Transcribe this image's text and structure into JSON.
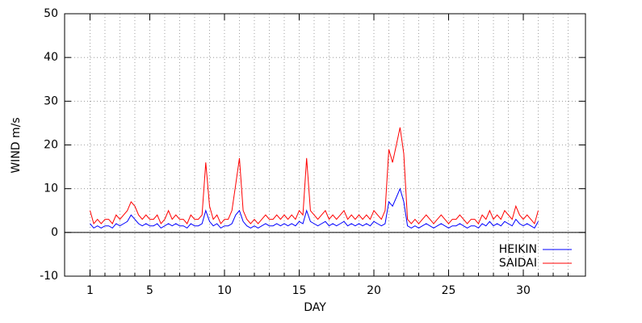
{
  "chart_data": {
    "type": "line",
    "xlabel": "DAY",
    "ylabel": "WIND m/s",
    "xlim": [
      -0.7,
      34.16
    ],
    "xticks": [
      1,
      5,
      10,
      15,
      20,
      25,
      30
    ],
    "xminorticks": [
      1,
      2,
      3,
      4,
      5,
      6,
      7,
      8,
      9,
      10,
      11,
      12,
      13,
      14,
      15,
      16,
      17,
      18,
      19,
      20,
      21,
      22,
      23,
      24,
      25,
      26,
      27,
      28,
      29,
      30,
      31,
      32,
      33
    ],
    "ylim": [
      -10,
      50
    ],
    "yticks": [
      -10,
      0,
      10,
      20,
      30,
      40,
      50
    ],
    "grid": true,
    "legend": "bottom-right",
    "x": [
      1,
      1.25,
      1.5,
      1.75,
      2,
      2.25,
      2.5,
      2.75,
      3,
      3.25,
      3.5,
      3.75,
      4,
      4.25,
      4.5,
      4.75,
      5,
      5.25,
      5.5,
      5.75,
      6,
      6.25,
      6.5,
      6.75,
      7,
      7.25,
      7.5,
      7.75,
      8,
      8.25,
      8.5,
      8.75,
      9,
      9.25,
      9.5,
      9.75,
      10,
      10.25,
      10.5,
      10.75,
      11,
      11.25,
      11.5,
      11.75,
      12,
      12.25,
      12.5,
      12.75,
      13,
      13.25,
      13.5,
      13.75,
      14,
      14.25,
      14.5,
      14.75,
      15,
      15.25,
      15.5,
      15.75,
      16,
      16.25,
      16.5,
      16.75,
      17,
      17.25,
      17.5,
      17.75,
      18,
      18.25,
      18.5,
      18.75,
      19,
      19.25,
      19.5,
      19.75,
      20,
      20.25,
      20.5,
      20.75,
      21,
      21.25,
      21.5,
      21.75,
      22,
      22.25,
      22.5,
      22.75,
      23,
      23.25,
      23.5,
      23.75,
      24,
      24.25,
      24.5,
      24.75,
      25,
      25.25,
      25.5,
      25.75,
      26,
      26.25,
      26.5,
      26.75,
      27,
      27.25,
      27.5,
      27.75,
      28,
      28.25,
      28.5,
      28.75,
      29,
      29.25,
      29.5,
      29.75,
      30,
      30.25,
      30.5,
      30.75,
      31
    ],
    "series": [
      {
        "name": "HEIKIN",
        "color": "#0000ff",
        "values": [
          2,
          1,
          1.5,
          1,
          1.5,
          1.5,
          1,
          2,
          1.5,
          2,
          2.5,
          4,
          3,
          2,
          1.5,
          2,
          1.5,
          1.5,
          2,
          1,
          1.5,
          2,
          1.5,
          2,
          1.5,
          1.5,
          1,
          2,
          1.5,
          1.5,
          2,
          5,
          2.5,
          1.5,
          2,
          1,
          1.5,
          1.5,
          2,
          4,
          5,
          2.5,
          1.5,
          1,
          1.5,
          1,
          1.5,
          2,
          1.5,
          1.5,
          2,
          1.5,
          2,
          1.5,
          2,
          1.5,
          2.5,
          2,
          5,
          2.5,
          2,
          1.5,
          2,
          2.5,
          1.5,
          2,
          1.5,
          2,
          2.5,
          1.5,
          2,
          1.5,
          2,
          1.5,
          2,
          1.5,
          2.5,
          2,
          1.5,
          2,
          7,
          6,
          8,
          10,
          7,
          1.5,
          1,
          1.5,
          1,
          1.5,
          2,
          1.5,
          1,
          1.5,
          2,
          1.5,
          1,
          1.5,
          1.5,
          2,
          1.5,
          1,
          1.5,
          1.5,
          1,
          2,
          1.5,
          2.5,
          1.5,
          2,
          1.5,
          2.5,
          2,
          1.5,
          3,
          2,
          1.5,
          2,
          1.5,
          1,
          2.5
        ]
      },
      {
        "name": "SAIDAI",
        "color": "#ff0000",
        "values": [
          5,
          2,
          3,
          2,
          3,
          3,
          2,
          4,
          3,
          4,
          5,
          7,
          6,
          4,
          3,
          4,
          3,
          3,
          4,
          2,
          3,
          5,
          3,
          4,
          3,
          3,
          2,
          4,
          3,
          3,
          4,
          16,
          6,
          3,
          4,
          2,
          3,
          3,
          5,
          11,
          17,
          5,
          3,
          2,
          3,
          2,
          3,
          4,
          3,
          3,
          4,
          3,
          4,
          3,
          4,
          3,
          5,
          4,
          17,
          5,
          4,
          3,
          4,
          5,
          3,
          4,
          3,
          4,
          5,
          3,
          4,
          3,
          4,
          3,
          4,
          3,
          5,
          4,
          3,
          5,
          19,
          16,
          20,
          24,
          18,
          3,
          2,
          3,
          2,
          3,
          4,
          3,
          2,
          3,
          4,
          3,
          2,
          3,
          3,
          4,
          3,
          2,
          3,
          3,
          2,
          4,
          3,
          5,
          3,
          4,
          3,
          5,
          4,
          3,
          6,
          4,
          3,
          4,
          3,
          2,
          5
        ]
      }
    ]
  }
}
